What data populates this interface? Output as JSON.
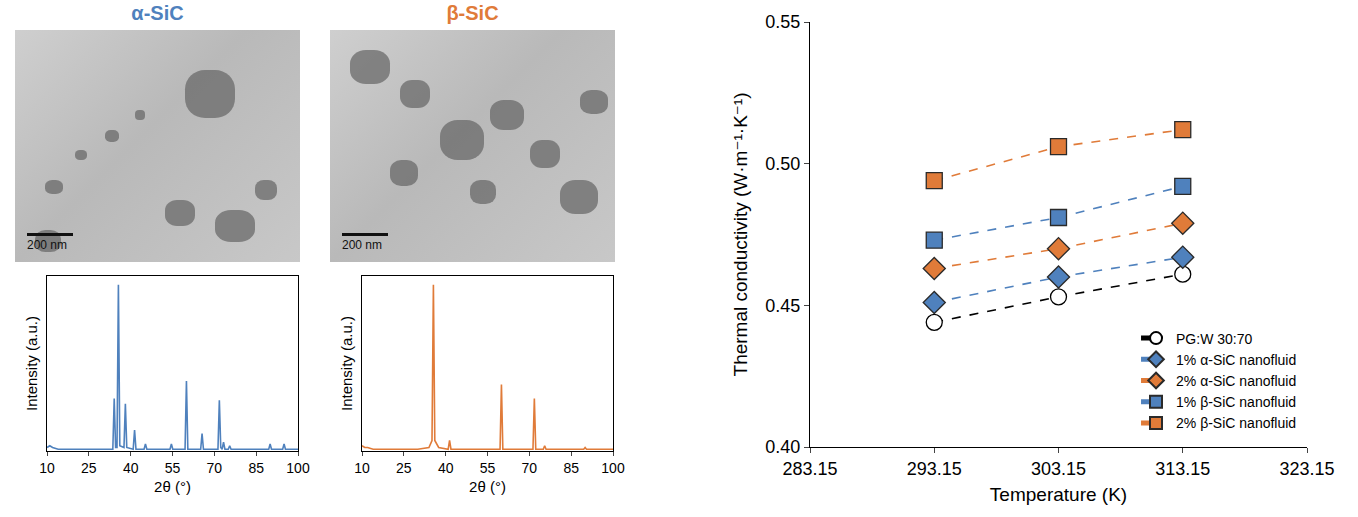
{
  "images": [
    {
      "scale_bar": "200 nm"
    },
    {
      "scale_bar": "200 nm"
    }
  ],
  "chart_data": [
    {
      "type": "line",
      "title": "α-SiC",
      "color": "#4f81bd",
      "x_label": "2θ (°)",
      "y_label": "Intensity (a.u.)",
      "x": [
        10,
        11,
        12,
        14,
        20,
        30,
        33.6,
        34.1,
        34.6,
        35.1,
        35.6,
        36.1,
        37.6,
        38.1,
        38.6,
        40.9,
        41.4,
        41.9,
        44.8,
        45.3,
        45.8,
        54.1,
        54.6,
        55.1,
        59.5,
        60.0,
        60.5,
        65.1,
        65.6,
        66.1,
        71.3,
        71.8,
        72.3,
        72.8,
        73.3,
        73.8,
        75.0,
        75.5,
        76.0,
        89.5,
        90.0,
        90.5,
        94.5,
        95.0,
        95.5,
        100
      ],
      "values": [
        2,
        3,
        2,
        1,
        1,
        1,
        1,
        30,
        2,
        2,
        95,
        3,
        2,
        27,
        2,
        1,
        12,
        1,
        1,
        4,
        1,
        1,
        4,
        1,
        1,
        40,
        1,
        1,
        10,
        1,
        1,
        29,
        2,
        1,
        5,
        1,
        1,
        3,
        1,
        1,
        4,
        1,
        1,
        4,
        1,
        1
      ],
      "xlim": [
        10,
        100
      ],
      "xticks": [
        10,
        25,
        40,
        55,
        70,
        85,
        100
      ],
      "ylim": [
        0,
        100
      ],
      "tick_labels": "x"
    },
    {
      "type": "line",
      "title": "β-SiC",
      "color": "#e07b39",
      "x_label": "2θ (°)",
      "y_label": "Intensity (a.u.)",
      "x": [
        10,
        11,
        12,
        14,
        20,
        30,
        34.0,
        35.1,
        35.6,
        36.1,
        37.5,
        40.9,
        41.4,
        41.9,
        59.5,
        60.0,
        60.5,
        71.3,
        71.8,
        72.3,
        75.0,
        75.5,
        76.0,
        89.5,
        90.0,
        90.5,
        100
      ],
      "values": [
        3,
        2,
        2,
        1,
        1,
        1,
        2,
        6,
        95,
        6,
        2,
        1,
        6,
        1,
        1,
        38,
        1,
        1,
        30,
        1,
        1,
        3,
        1,
        1,
        2,
        1,
        1
      ],
      "xlim": [
        10,
        100
      ],
      "xticks": [
        10,
        25,
        40,
        55,
        70,
        85,
        100
      ],
      "ylim": [
        0,
        100
      ],
      "tick_labels": "x"
    },
    {
      "type": "line",
      "x_label": "Temperature (K)",
      "y_label": "Thermal conductivity (W·m⁻¹·K⁻¹)",
      "x": [
        293.15,
        303.15,
        313.15
      ],
      "series": [
        {
          "name": "PG:W 30:70",
          "color": "#000000",
          "marker": "open circle",
          "line_style": "dashed",
          "values": [
            0.444,
            0.453,
            0.461
          ]
        },
        {
          "name": "1% α-SiC nanofluid",
          "color": "#4f81bd",
          "marker": "diamond",
          "line_style": "dashed",
          "values": [
            0.451,
            0.46,
            0.467
          ]
        },
        {
          "name": "2% α-SiC nanofluid",
          "color": "#e07b39",
          "marker": "diamond",
          "line_style": "dashed",
          "values": [
            0.463,
            0.47,
            0.479
          ]
        },
        {
          "name": "1% β-SiC nanofluid",
          "color": "#4f81bd",
          "marker": "square",
          "line_style": "dashed",
          "values": [
            0.473,
            0.481,
            0.492
          ]
        },
        {
          "name": "2% β-SiC nanofluid",
          "color": "#e07b39",
          "marker": "square",
          "line_style": "dashed",
          "values": [
            0.494,
            0.506,
            0.512
          ]
        }
      ],
      "xlim": [
        283.15,
        323.15
      ],
      "xticks": [
        283.15,
        293.15,
        303.15,
        313.15,
        323.15
      ],
      "ylim": [
        0.4,
        0.55
      ],
      "yticks": [
        {
          "value": 0.4,
          "label": "0.40"
        },
        0.45,
        {
          "value": 0.5,
          "label": "0.50"
        },
        0.55
      ],
      "legend": "bottom right"
    }
  ]
}
